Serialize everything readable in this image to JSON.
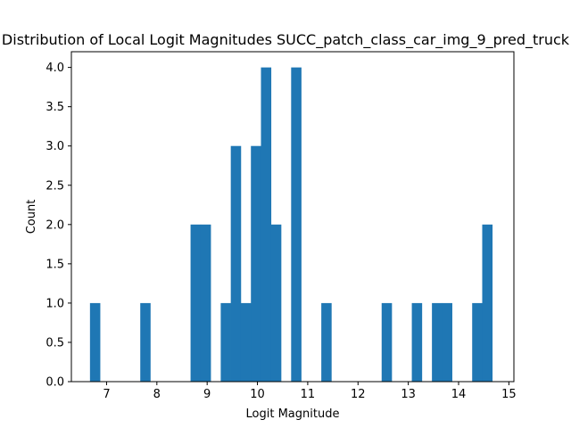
{
  "chart_data": {
    "type": "bar",
    "title": "Distribution of Local Logit Magnitudes SUCC_patch_class_car_img_9_pred_truck",
    "xlabel": "Logit Magnitude",
    "ylabel": "Count",
    "xlim": [
      6.3,
      15.1
    ],
    "ylim": [
      0,
      4.2
    ],
    "xticks": [
      "7",
      "8",
      "9",
      "10",
      "11",
      "12",
      "13",
      "14",
      "15"
    ],
    "yticks": [
      "0.0",
      "0.5",
      "1.0",
      "1.5",
      "2.0",
      "2.5",
      "3.0",
      "3.5",
      "4.0"
    ],
    "bin_width": 0.2,
    "bins": [
      {
        "x0": 6.67,
        "count": 1
      },
      {
        "x0": 7.67,
        "count": 1
      },
      {
        "x0": 8.67,
        "count": 2
      },
      {
        "x0": 8.87,
        "count": 2
      },
      {
        "x0": 9.27,
        "count": 1
      },
      {
        "x0": 9.47,
        "count": 3
      },
      {
        "x0": 9.67,
        "count": 1
      },
      {
        "x0": 9.87,
        "count": 3
      },
      {
        "x0": 10.07,
        "count": 4
      },
      {
        "x0": 10.27,
        "count": 2
      },
      {
        "x0": 10.67,
        "count": 4
      },
      {
        "x0": 11.27,
        "count": 1
      },
      {
        "x0": 12.47,
        "count": 1
      },
      {
        "x0": 13.07,
        "count": 1
      },
      {
        "x0": 13.47,
        "count": 1
      },
      {
        "x0": 13.67,
        "count": 1
      },
      {
        "x0": 14.27,
        "count": 1
      },
      {
        "x0": 14.47,
        "count": 2
      }
    ],
    "bar_color": "#1f77b4",
    "grid": false,
    "legend": "none"
  }
}
